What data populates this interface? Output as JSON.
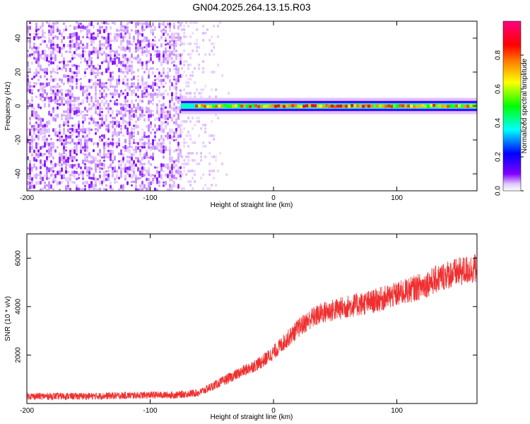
{
  "title": "GN04.2025.264.13.15.R03",
  "chart_data": [
    {
      "type": "heatmap",
      "xlabel": "Height of straight line (km)",
      "ylabel": "Frequency (Hz)",
      "xlim": [
        -200,
        165
      ],
      "ylim": [
        -50,
        50
      ],
      "x_ticks": [
        -200,
        -100,
        0,
        100
      ],
      "y_ticks": [
        -40,
        -20,
        0,
        20,
        40
      ],
      "colorbar": {
        "label": "Normalized spectral amplitude",
        "range": [
          0,
          1
        ],
        "ticks": [
          "0.0",
          "0.2",
          "0.4",
          "0.6",
          "0.8"
        ],
        "colors": [
          "#ffffff",
          "#8000ff",
          "#0000ff",
          "#00ffff",
          "#00ff00",
          "#ffff00",
          "#ff8000",
          "#ff0000",
          "#ff0080"
        ]
      },
      "features": {
        "noise_region_x": [
          -200,
          -75
        ],
        "faint_region_x": [
          -75,
          -35
        ],
        "carrier_start_x": -75,
        "carrier_frequency": 0,
        "carrier_width_hz": 3
      }
    },
    {
      "type": "line",
      "xlabel": "Height of straight line (km)",
      "ylabel": "SNR (10 * v/v)",
      "xlim": [
        -200,
        165
      ],
      "ylim": [
        0,
        7000
      ],
      "x_ticks": [
        -200,
        -100,
        0,
        100
      ],
      "y_ticks": [
        2000,
        4000,
        6000
      ],
      "series_color": "#f03030",
      "x": [
        -200,
        -150,
        -100,
        -80,
        -60,
        -50,
        -40,
        -30,
        -20,
        -10,
        0,
        10,
        20,
        30,
        40,
        60,
        80,
        100,
        120,
        140,
        165
      ],
      "y": [
        300,
        300,
        350,
        350,
        450,
        700,
        950,
        1200,
        1450,
        1700,
        2100,
        2600,
        3100,
        3500,
        3750,
        4000,
        4200,
        4500,
        4850,
        5300,
        5600
      ]
    }
  ]
}
